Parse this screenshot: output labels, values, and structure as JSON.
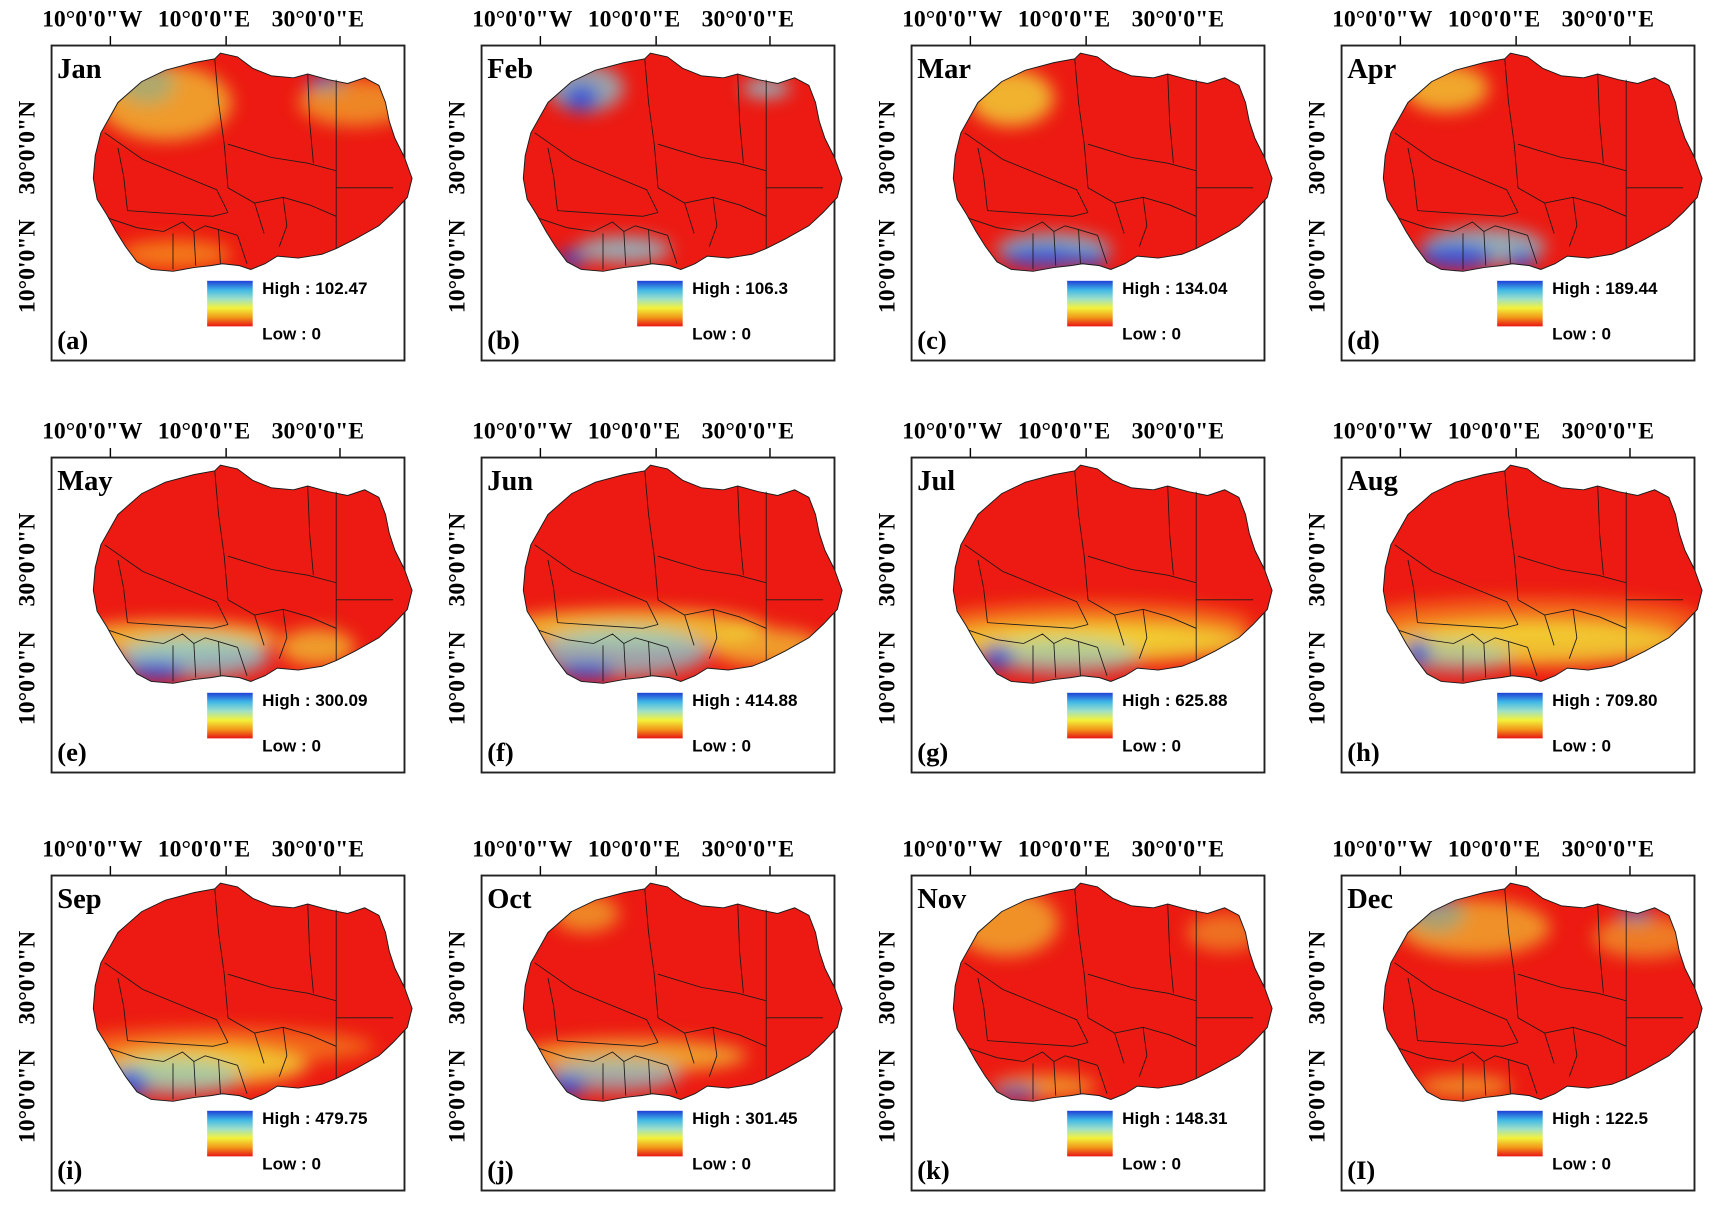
{
  "axis_labels": {
    "longitude": [
      "10°0'0\"W",
      "10°0'0\"E",
      "30°0'0\"E"
    ],
    "latitude": [
      "30°0'0\"N",
      "10°0'0\"N"
    ]
  },
  "legend": {
    "high_prefix": "High : ",
    "low_label": "Low : 0",
    "colors": [
      "#1f3fd6",
      "#3fb8e6",
      "#9fe0c8",
      "#f2f23a",
      "#f29a1a",
      "#e81414"
    ]
  },
  "colors": {
    "land_base": "#ec1a12",
    "border": "#1a1a1a",
    "frame": "#222222"
  },
  "panels": [
    {
      "month": "Jan",
      "letter": "(a)",
      "high": "102.47"
    },
    {
      "month": "Feb",
      "letter": "(b)",
      "high": "106.3"
    },
    {
      "month": "Mar",
      "letter": "(c)",
      "high": "134.04"
    },
    {
      "month": "Apr",
      "letter": "(d)",
      "high": "189.44"
    },
    {
      "month": "May",
      "letter": "(e)",
      "high": "300.09"
    },
    {
      "month": "Jun",
      "letter": "(f)",
      "high": "414.88"
    },
    {
      "month": "Jul",
      "letter": "(g)",
      "high": "625.88"
    },
    {
      "month": "Aug",
      "letter": "(h)",
      "high": "709.80"
    },
    {
      "month": "Sep",
      "letter": "(i)",
      "high": "479.75"
    },
    {
      "month": "Oct",
      "letter": "(j)",
      "high": "301.45"
    },
    {
      "month": "Nov",
      "letter": "(k)",
      "high": "148.31"
    },
    {
      "month": "Dec",
      "letter": "(I)",
      "high": "122.5"
    }
  ]
}
